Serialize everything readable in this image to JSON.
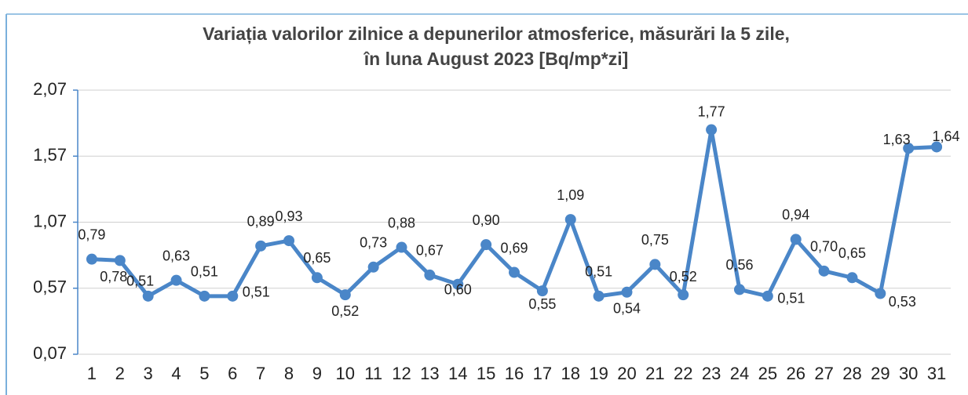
{
  "chart_data": {
    "type": "line",
    "title": [
      "Variația valorilor zilnice a depunerilor atmosferice, măsurări la 5 zile,",
      "în luna August 2023 [Bq/mp*zi]"
    ],
    "categories": [
      "1",
      "2",
      "3",
      "4",
      "5",
      "6",
      "7",
      "8",
      "9",
      "10",
      "11",
      "12",
      "13",
      "14",
      "15",
      "16",
      "17",
      "18",
      "19",
      "20",
      "21",
      "22",
      "23",
      "24",
      "25",
      "26",
      "27",
      "28",
      "29",
      "30",
      "31"
    ],
    "series": [
      {
        "color": "#4a86c8",
        "values": [
          0.79,
          0.78,
          0.51,
          0.63,
          0.51,
          0.51,
          0.89,
          0.93,
          0.65,
          0.52,
          0.73,
          0.88,
          0.67,
          0.6,
          0.9,
          0.69,
          0.55,
          1.09,
          0.51,
          0.54,
          0.75,
          0.52,
          1.77,
          0.56,
          0.51,
          0.94,
          0.7,
          0.65,
          0.53,
          1.63,
          1.64
        ],
        "value_labels": [
          "0,79",
          "0,78",
          "0,51",
          "0,63",
          "0,51",
          "0,51",
          "0,89",
          "0,93",
          "0,65",
          "0,52",
          "0,73",
          "0,88",
          "0,67",
          "0,60",
          "0,90",
          "0,69",
          "0,55",
          "1,09",
          "0,51",
          "0,54",
          "0,75",
          "0,52",
          "1,77",
          "0,56",
          "0,51",
          "0,94",
          "0,70",
          "0,65",
          "0,53",
          "1,63",
          "1,64"
        ]
      }
    ],
    "ylim": [
      0.07,
      2.07
    ],
    "yticks": [
      {
        "value": 0.07,
        "label": "0,07"
      },
      {
        "value": 0.57,
        "label": "0,57"
      },
      {
        "value": 1.07,
        "label": "1,07"
      },
      {
        "value": 1.57,
        "label": "1,57"
      },
      {
        "value": 2.07,
        "label": "2,07"
      }
    ],
    "grid": true
  }
}
